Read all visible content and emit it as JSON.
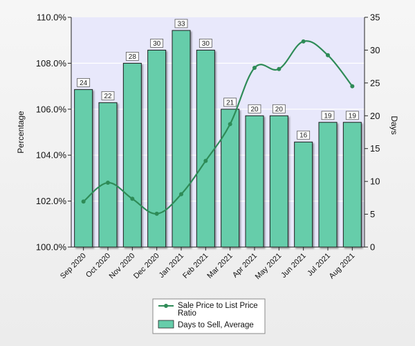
{
  "chart_data": {
    "type": "bar",
    "categories": [
      "Sep 2020",
      "Oct 2020",
      "Nov 2020",
      "Dec 2020",
      "Jan 2021",
      "Feb 2021",
      "Mar 2021",
      "Apr 2021",
      "May 2021",
      "Jun 2021",
      "Jul 2021",
      "Aug 2021"
    ],
    "series": [
      {
        "name": "Days to Sell, Average",
        "type": "bar",
        "axis": "right",
        "values": [
          24,
          22,
          28,
          30,
          33,
          30,
          21,
          20,
          20,
          16,
          19,
          19
        ],
        "data_labels": [
          "24",
          "22",
          "28",
          "30",
          "33",
          "30",
          "21",
          "20",
          "20",
          "16",
          "19",
          "19"
        ],
        "color": "#66cdaa"
      },
      {
        "name": "Sale Price to List Price Ratio",
        "type": "line",
        "axis": "left",
        "values": [
          101.98,
          102.8,
          102.1,
          101.45,
          102.3,
          103.75,
          105.35,
          107.8,
          107.75,
          108.95,
          108.35,
          107.0
        ],
        "color": "#2e8b57"
      }
    ],
    "ylabel": "Percentage",
    "y2label": "Days",
    "ylim": [
      100,
      110
    ],
    "y2lim": [
      0,
      35
    ],
    "yticks": [
      "100.0%",
      "102.0%",
      "104.0%",
      "106.0%",
      "108.0%",
      "110.0%"
    ],
    "y2ticks": [
      "0",
      "5",
      "10",
      "15",
      "20",
      "25",
      "30",
      "35"
    ],
    "grid": "horizontal",
    "legend_position": "bottom-center",
    "background_color": "#e8e8fb",
    "grid_color": "#ffffff"
  }
}
